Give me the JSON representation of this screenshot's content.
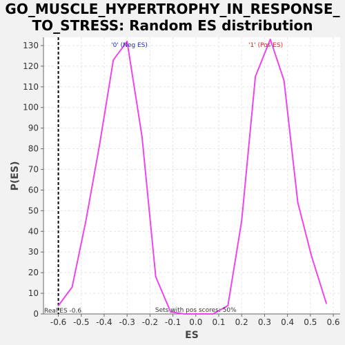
{
  "chart_data": {
    "type": "line",
    "title_lines": [
      "GO_MUSCLE_HYPERTROPHY_IN_RESPONSE_",
      "TO_STRESS: Random ES distribution"
    ],
    "xlabel": "ES",
    "ylabel": "P(ES)",
    "xlim": [
      -0.665,
      0.63
    ],
    "ylim": [
      0,
      134
    ],
    "xticks": [
      -0.6,
      -0.5,
      -0.4,
      -0.3,
      -0.2,
      -0.1,
      0.0,
      0.1,
      0.2,
      0.3,
      0.4,
      0.5,
      0.6
    ],
    "xtick_labels": [
      "-0.6",
      "-0.5",
      "-0.4",
      "-0.3",
      "-0.2",
      "-0.1",
      "0.0",
      "0.1",
      "0.2",
      "0.3",
      "0.4",
      "0.5",
      "0.6"
    ],
    "yticks": [
      0,
      10,
      20,
      30,
      40,
      50,
      60,
      70,
      80,
      90,
      100,
      110,
      120,
      130
    ],
    "ytick_labels": [
      "0",
      "10",
      "20",
      "30",
      "40",
      "50",
      "60",
      "70",
      "80",
      "90",
      "100",
      "110",
      "120",
      "130"
    ],
    "grid": true,
    "series": [
      {
        "color": "#ee44ee",
        "x": [
          -0.6,
          -0.54,
          -0.48,
          -0.42,
          -0.36,
          -0.3,
          -0.235,
          -0.175,
          -0.11,
          -0.05,
          0.01,
          0.075,
          0.14,
          0.2,
          0.26,
          0.325,
          0.385,
          0.445,
          0.505,
          0.57
        ],
        "y": [
          4,
          13,
          45,
          82,
          123,
          132,
          86,
          18,
          1,
          0,
          0,
          0,
          4,
          45,
          115,
          133,
          113,
          54,
          28,
          5
        ]
      }
    ],
    "real_es": -0.6,
    "real_es_label": "Real ES -0.6",
    "neg_label": "'0' (Neg ES)",
    "pos_label": "'1' (Pos ES)",
    "neg_label_color": "#2222cc",
    "pos_label_color": "#dd2222",
    "footer_note": "Sets with pos scores: 50%"
  }
}
